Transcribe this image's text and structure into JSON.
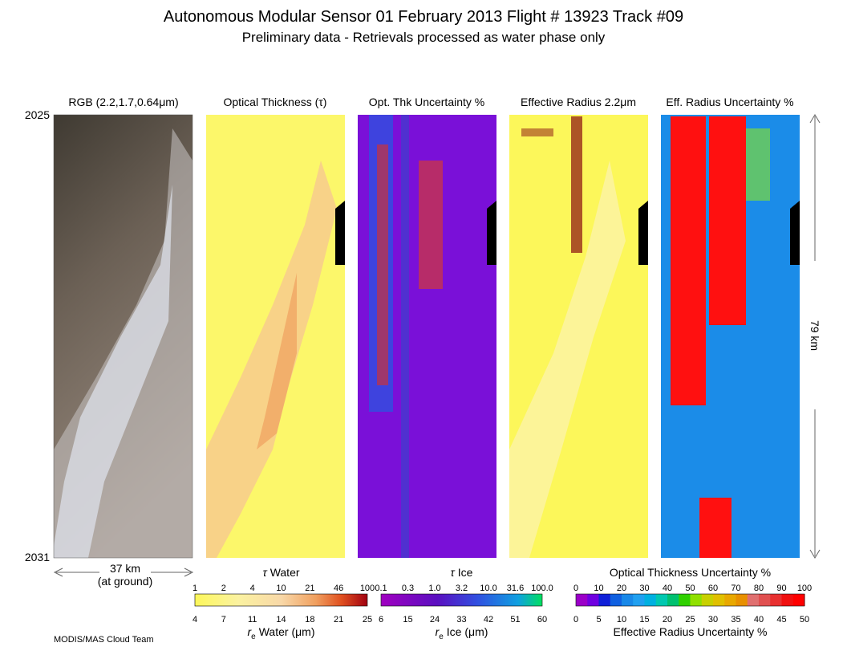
{
  "header": {
    "title": "Autonomous Modular Sensor  01 February 2013  Flight # 13923 Track #09",
    "subtitle": "Preliminary data - Retrievals processed as water phase only"
  },
  "panels": [
    {
      "title": "RGB (2.2,1.7,0.64μm)"
    },
    {
      "title": "Optical Thickness (τ)"
    },
    {
      "title": "Opt. Thk Uncertainty %"
    },
    {
      "title": "Effective Radius 2.2μm"
    },
    {
      "title": "Eff. Radius Uncertainty %"
    }
  ],
  "time_axis": {
    "start": "2025",
    "end": "2031"
  },
  "scale": {
    "across": "37 km",
    "across_note": "(at ground)",
    "along": "79 km"
  },
  "colorbars": [
    {
      "top_title": {
        "symbol": "τ",
        "text": "Water"
      },
      "top_ticks": [
        "1",
        "2",
        "4",
        "10",
        "21",
        "46",
        "100"
      ],
      "bottom_ticks": [
        "4",
        "7",
        "11",
        "14",
        "18",
        "21",
        "25"
      ],
      "bottom_title": {
        "symbol": "r",
        "subscript": "e",
        "text": "Water (μm)"
      }
    },
    {
      "top_title": {
        "symbol": "τ",
        "text": "Ice"
      },
      "top_ticks": [
        "0.1",
        "0.3",
        "1.0",
        "3.2",
        "10.0",
        "31.6",
        "100.0"
      ],
      "bottom_ticks": [
        "6",
        "15",
        "24",
        "33",
        "42",
        "51",
        "60"
      ],
      "bottom_title": {
        "symbol": "r",
        "subscript": "e",
        "text": "Ice (μm)"
      }
    },
    {
      "top_title": {
        "text": "Optical Thickness Uncertainty %"
      },
      "top_ticks": [
        "0",
        "10",
        "20",
        "30",
        "40",
        "50",
        "60",
        "70",
        "80",
        "90",
        "100"
      ],
      "bottom_ticks": [
        "0",
        "5",
        "10",
        "15",
        "20",
        "25",
        "30",
        "35",
        "40",
        "45",
        "50"
      ],
      "bottom_title": {
        "text": "Effective Radius Uncertainty %"
      }
    }
  ],
  "footer": {
    "credit": "MODIS/MAS Cloud Team"
  }
}
